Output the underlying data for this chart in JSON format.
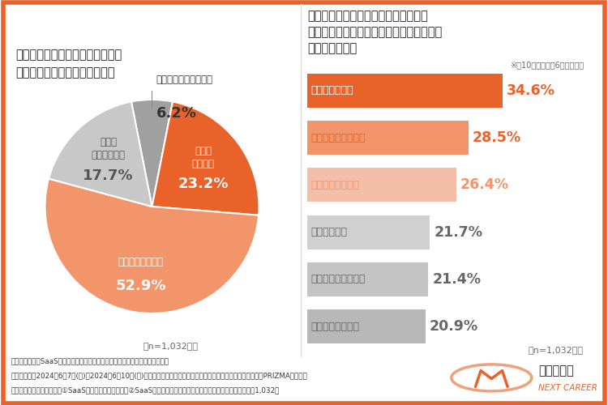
{
  "pie_title": "貴社では産休、育休、介護休暇の\n取得はしやすいと思いますか？",
  "pie_note": "（n=1,032人）",
  "pie_order_values": [
    6.2,
    23.2,
    52.9,
    17.7
  ],
  "pie_order_colors": [
    "#A0A0A0",
    "#E8622A",
    "#F2956A",
    "#C8C8C8"
  ],
  "pie_order_labels": [
    "まったくそう思わない",
    "とても\nそう思う",
    "ある程度そう思う",
    "あまり\nそう思わない"
  ],
  "pie_order_pcts": [
    "6.2%",
    "23.2%",
    "52.9%",
    "17.7%"
  ],
  "pie_order_label_colors": [
    "#333333",
    "#ffffff",
    "#ffffff",
    "#555555"
  ],
  "pie_outside": [
    true,
    false,
    false,
    false
  ],
  "bar_title_line1": "産休、育休、介護休暇の取得において",
  "bar_title_line2": "課題と感じることについて教えてください",
  "bar_title_line3": "（複数回答可）",
  "bar_note_top": "※全10項目中上位6項目を抜粋",
  "bar_categories": [
    "職場の負担増大",
    "仕事の引継ぎ、後任",
    "社内での事例不足",
    "希望者の不足",
    "メンバーの理解不足",
    "経営層の理解不足"
  ],
  "bar_values": [
    34.6,
    28.5,
    26.4,
    21.7,
    21.4,
    20.9
  ],
  "bar_colors": [
    "#E8622A",
    "#F2956A",
    "#F5BEA8",
    "#D0D0D0",
    "#C4C4C4",
    "#B8B8B8"
  ],
  "bar_label_colors_inside": [
    "#ffffff",
    "#E8622A",
    "#F2956A",
    "#666666",
    "#666666",
    "#666666"
  ],
  "bar_pct_colors": [
    "#E8622A",
    "#E8622A",
    "#F2956A",
    "#666666",
    "#666666",
    "#666666"
  ],
  "bar_note": "（n=1,032人）",
  "footer_line1": "《調査概要：「SaaS企業における男女共同参画推進動向」に関する実態調査》",
  "footer_line2": "・調査期間：2024年6月7日(金)～2024年6月10日(月)　　・調査方法：インターネット調査　　・モニター提供元：PRIZMAリサーチ",
  "footer_line3": "・調査対象：調査回答時に①SaaS企業に勤めている方／②SaaS企業の人事担当者と回答したモニター　・調査人数：1,032人",
  "logo_text1": "マーキャリ",
  "logo_text2": "NEXT CAREER",
  "background_color": "#ffffff",
  "border_color": "#E8622A"
}
